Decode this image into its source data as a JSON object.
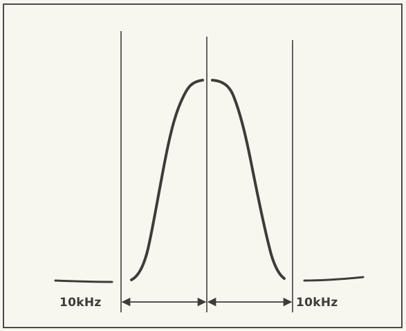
{
  "labels": {
    "left_bandwidth": "10kHz",
    "right_bandwidth": "10kHz"
  },
  "colors": {
    "background": "#f8f7ef",
    "ink": "#3d3d38",
    "frame": "#4a4a44"
  }
}
